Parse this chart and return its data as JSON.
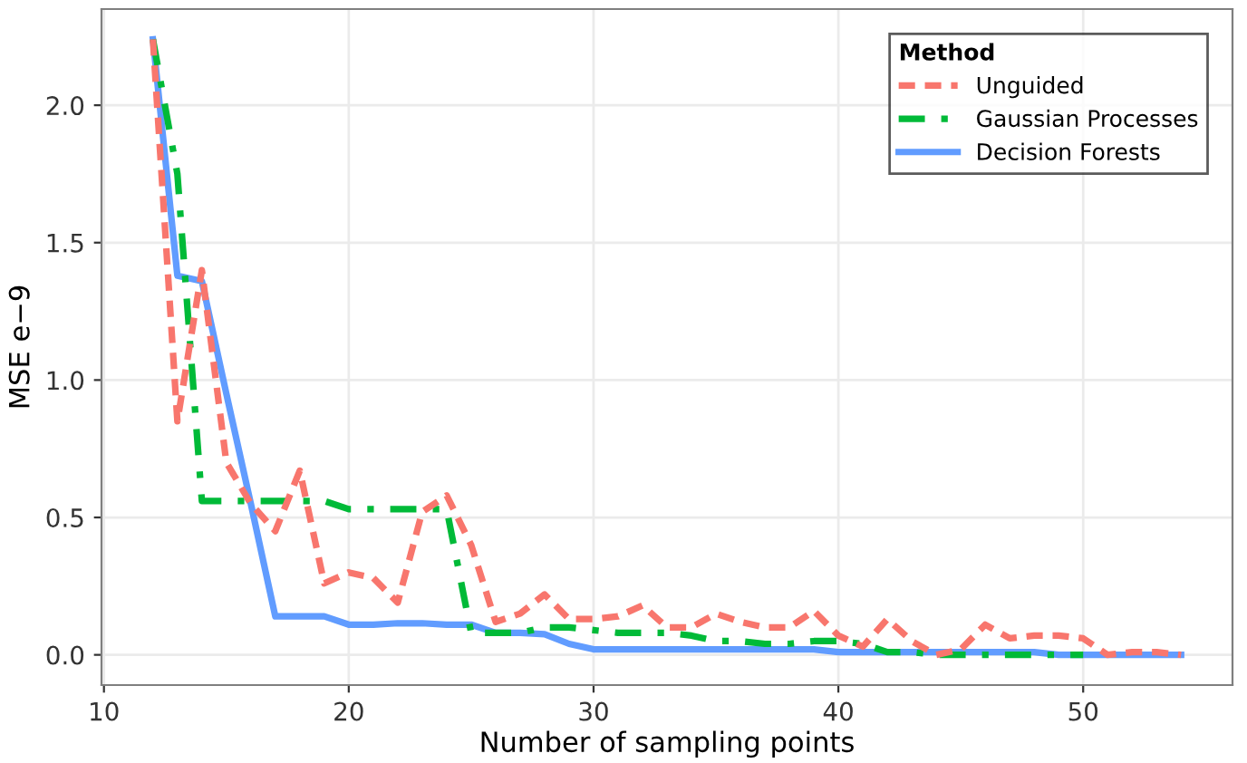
{
  "chart_data": {
    "type": "line",
    "xlabel": "Number of sampling points",
    "ylabel": "MSE e−9",
    "legend_title": "Method",
    "legend": "top right",
    "grid": true,
    "marker": "none",
    "xlim": [
      9.9,
      56.1
    ],
    "xticks": [
      10,
      20,
      30,
      40,
      50
    ],
    "ylim": [
      -0.11,
      2.35
    ],
    "yticks": [
      {
        "value": 0,
        "label": "0.0"
      },
      {
        "value": 0.5,
        "label": "0.5"
      },
      {
        "value": 1,
        "label": "1.0"
      },
      {
        "value": 1.5,
        "label": "1.5"
      },
      {
        "value": 2,
        "label": "2.0"
      }
    ],
    "x": [
      12,
      13,
      14,
      15,
      16,
      17,
      18,
      19,
      20,
      21,
      22,
      23,
      24,
      25,
      26,
      27,
      28,
      29,
      30,
      31,
      32,
      33,
      34,
      35,
      36,
      37,
      38,
      39,
      40,
      41,
      42,
      43,
      44,
      45,
      46,
      47,
      48,
      49,
      50,
      51,
      52,
      53,
      54
    ],
    "series": [
      {
        "name": "Unguided",
        "color": "#f8766d",
        "line_style": "dashed",
        "values": [
          2.24,
          0.85,
          1.4,
          0.7,
          0.55,
          0.45,
          0.67,
          0.26,
          0.3,
          0.28,
          0.19,
          0.52,
          0.58,
          0.4,
          0.12,
          0.15,
          0.22,
          0.13,
          0.13,
          0.14,
          0.18,
          0.1,
          0.1,
          0.15,
          0.12,
          0.1,
          0.1,
          0.16,
          0.07,
          0.03,
          0.13,
          0.05,
          0.0,
          0.02,
          0.11,
          0.06,
          0.07,
          0.07,
          0.06,
          0.0,
          0.01,
          0.01,
          0.0
        ]
      },
      {
        "name": "Gaussian Processes",
        "color": "#00ba38",
        "line_style": "dashdot",
        "values": [
          2.24,
          1.75,
          0.56,
          0.56,
          0.56,
          0.56,
          0.56,
          0.56,
          0.53,
          0.53,
          0.53,
          0.53,
          0.53,
          0.08,
          0.08,
          0.08,
          0.1,
          0.1,
          0.09,
          0.08,
          0.08,
          0.08,
          0.07,
          0.05,
          0.05,
          0.04,
          0.04,
          0.05,
          0.05,
          0.04,
          0.01,
          0.01,
          0.0,
          0.0,
          0.0,
          0.0,
          0.0,
          0.0,
          0.0,
          null,
          null,
          null,
          null
        ]
      },
      {
        "name": "Decision Forests",
        "color": "#619cff",
        "line_style": "solid",
        "values": [
          2.24,
          1.38,
          1.36,
          0.95,
          0.55,
          0.14,
          0.14,
          0.14,
          0.11,
          0.11,
          0.115,
          0.115,
          0.11,
          0.11,
          0.08,
          0.08,
          0.075,
          0.04,
          0.02,
          0.02,
          0.02,
          0.02,
          0.02,
          0.02,
          0.02,
          0.02,
          0.02,
          0.02,
          0.01,
          0.01,
          0.01,
          0.01,
          0.01,
          0.01,
          0.01,
          0.01,
          0.01,
          0.0,
          0.0,
          0.0,
          0.0,
          0.0,
          0.0
        ]
      }
    ]
  }
}
